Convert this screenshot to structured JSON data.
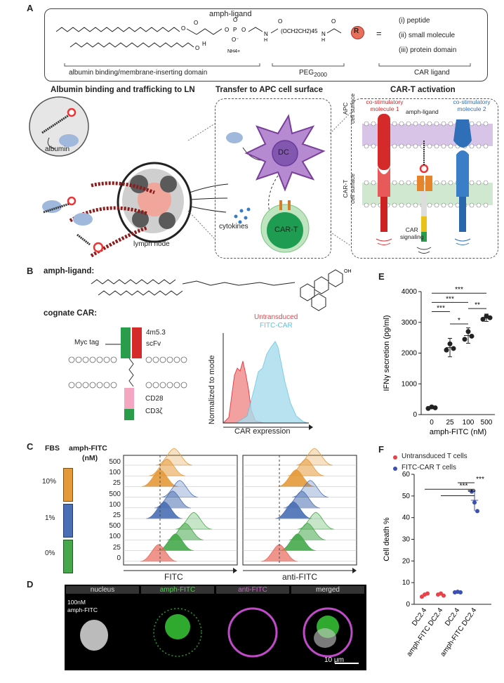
{
  "panels": {
    "a": "A",
    "b": "B",
    "c": "C",
    "d": "D",
    "e": "E",
    "f": "F"
  },
  "panel_a": {
    "ligand_label": "amph-ligand",
    "r_symbol": "R",
    "equals": "=",
    "options": [
      "(i) peptide",
      "(ii) small molecule",
      "(iii) protein domain"
    ],
    "domains": [
      "albumin binding/membrane-inserting domain",
      "PEG",
      "CAR ligand"
    ],
    "peg_sub": "2000",
    "chem_nh4": "NH4+",
    "chem_peg": "(OCH2CH2)45",
    "headings": [
      "Albumin binding and trafficking to LN",
      "Transfer to APC cell surface",
      "CAR-T activation"
    ],
    "albumin": "albumin",
    "lymph_node": "lymph node",
    "cytokines": "cytokines",
    "dc": "DC",
    "car_t": "CAR-T",
    "costim1": "co-stimulatory\nmolecule 1",
    "costim2": "co-stimulatory\nmolecule 2",
    "amph_ligand2": "amph-ligand",
    "apc_surface": "APC\ncell surface",
    "cart_surface": "CAR-T\ncell surface",
    "car_signaling": "CAR\nsignaling"
  },
  "panel_b": {
    "amph_ligand": "amph-ligand:",
    "cognate": "cognate CAR:",
    "myc": "Myc tag",
    "scfv1": "4m5.3",
    "scfv2": "scFv",
    "cd28": "CD28",
    "cd3z": "CD3ζ",
    "hist_ylabel": "Normalized to mode",
    "hist_xlabel": "CAR expression",
    "legend": [
      "Untransduced",
      "FITC-CAR"
    ],
    "colors": {
      "untransduced": "#e8424a",
      "fitc_car": "#5bc4e0"
    }
  },
  "panel_c": {
    "fbs": "FBS",
    "amph": "amph-FITC",
    "nm": "(nM)",
    "fbs_levels": [
      "10%",
      "1%",
      "0%"
    ],
    "concs": [
      "500",
      "100",
      "25",
      "500",
      "100",
      "25",
      "500",
      "100",
      "25",
      "0"
    ],
    "xlabels": [
      "FITC",
      "anti-FITC"
    ],
    "colors": {
      "10%": "#e59a3a",
      "1%": "#4a6fb5",
      "0%": "#46a84a",
      "zero": "#e8685a"
    }
  },
  "panel_d": {
    "headers": [
      "nucleus",
      "amph-FITC",
      "anti-FITC",
      "merged"
    ],
    "label1": "100nM",
    "label2": "amph-FITC",
    "scale": "10 μm"
  },
  "chart_data": [
    {
      "type": "scatter",
      "panel": "E",
      "categories": [
        "0",
        "25",
        "100",
        "500"
      ],
      "xlabel": "amph-FITC (nM)",
      "ylabel": "IFNγ secretion (pg/ml)",
      "ylim": [
        0,
        4000
      ],
      "yticks": [
        "0",
        "1000",
        "2000",
        "3000",
        "4000"
      ],
      "points": [
        [
          200,
          250,
          220
        ],
        [
          2100,
          2300,
          2150
        ],
        [
          2450,
          2700,
          2550
        ],
        [
          3100,
          3200,
          3150
        ]
      ],
      "means": [
        225,
        2180,
        2570,
        3150
      ],
      "sd": [
        30,
        300,
        250,
        120
      ],
      "significance": [
        "***",
        "***",
        "***",
        "*",
        "**"
      ]
    },
    {
      "type": "scatter",
      "panel": "F",
      "categories": [
        "DC2.4",
        "amph-FITC DC2.4",
        "DC2.4",
        "amph-FITC DC2.4"
      ],
      "series": [
        {
          "name": "Untransduced T cells",
          "color": "#e8424a",
          "groups": [
            0,
            1
          ]
        },
        {
          "name": "FITC-CAR T cells",
          "color": "#3b50b0",
          "groups": [
            2,
            3
          ]
        }
      ],
      "points": [
        [
          3.5,
          4.5,
          5.0
        ],
        [
          4.5,
          5.0,
          4.0
        ],
        [
          5.5,
          5.8,
          5.5
        ],
        [
          52,
          47,
          43
        ]
      ],
      "means": [
        4.3,
        4.5,
        5.6,
        48
      ],
      "sd": [
        0.8,
        0.5,
        0.2,
        5
      ],
      "ylabel": "Cell death %",
      "ylim": [
        0,
        60
      ],
      "yticks": [
        "0",
        "10",
        "20",
        "30",
        "40",
        "50",
        "60"
      ],
      "significance": [
        "***",
        "***",
        "***"
      ]
    }
  ]
}
